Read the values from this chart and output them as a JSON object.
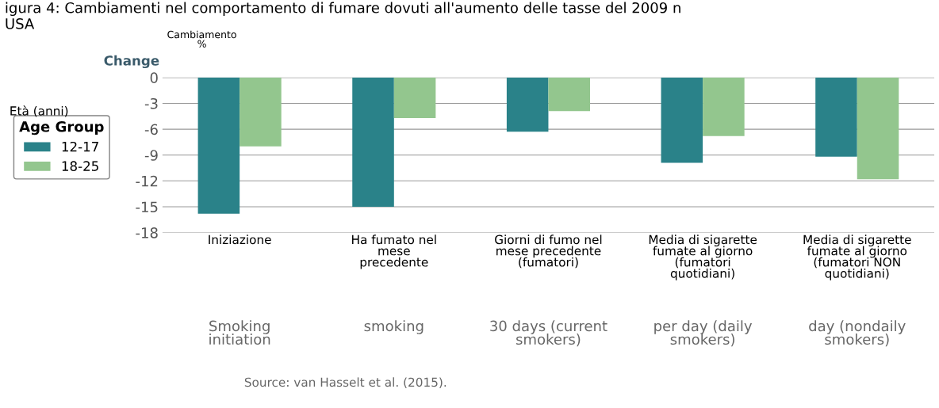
{
  "chart_data": {
    "type": "bar",
    "title": "igura 4: Cambiamenti nel comportamento di fumare dovuti all'aumento delle tasse del 2009 n\nUSA",
    "ylabel": "Change",
    "legend_title": "Age Group",
    "categories": [
      "Iniziazione",
      "Ha fumato nel\nmese\nprecedente",
      "Giorni di fumo nel\nmese precedente\n(fumatori)",
      "Media di sigarette\nfumate al giorno\n(fumatori\nquotidiani)",
      "Media di sigarette\nfumate al giorno\n(fumatori NON\nquotidiani)"
    ],
    "series": [
      {
        "name": "12-17",
        "color": "#2a8289",
        "values": [
          -15.8,
          -15,
          -6.3,
          -9.9,
          -9.2
        ]
      },
      {
        "name": "18-25",
        "color": "#93c68e",
        "values": [
          -8.0,
          -4.7,
          -3.9,
          -6.8,
          -11.8
        ]
      }
    ],
    "ylim": [
      -18,
      0
    ],
    "yticks": [
      -18,
      -15,
      -12,
      -9,
      -6,
      -3,
      0
    ],
    "grid": "y",
    "legend": "left",
    "annotations": [
      "Cambiamento\n%",
      "Età (anni)",
      "Smoking\ninitiation",
      "smoking",
      "30 days (current\nsmokers)",
      "per day (daily\nsmokers)",
      "day (nondaily\nsmokers)",
      "Source: van Hasselt et al. (2015)."
    ]
  }
}
